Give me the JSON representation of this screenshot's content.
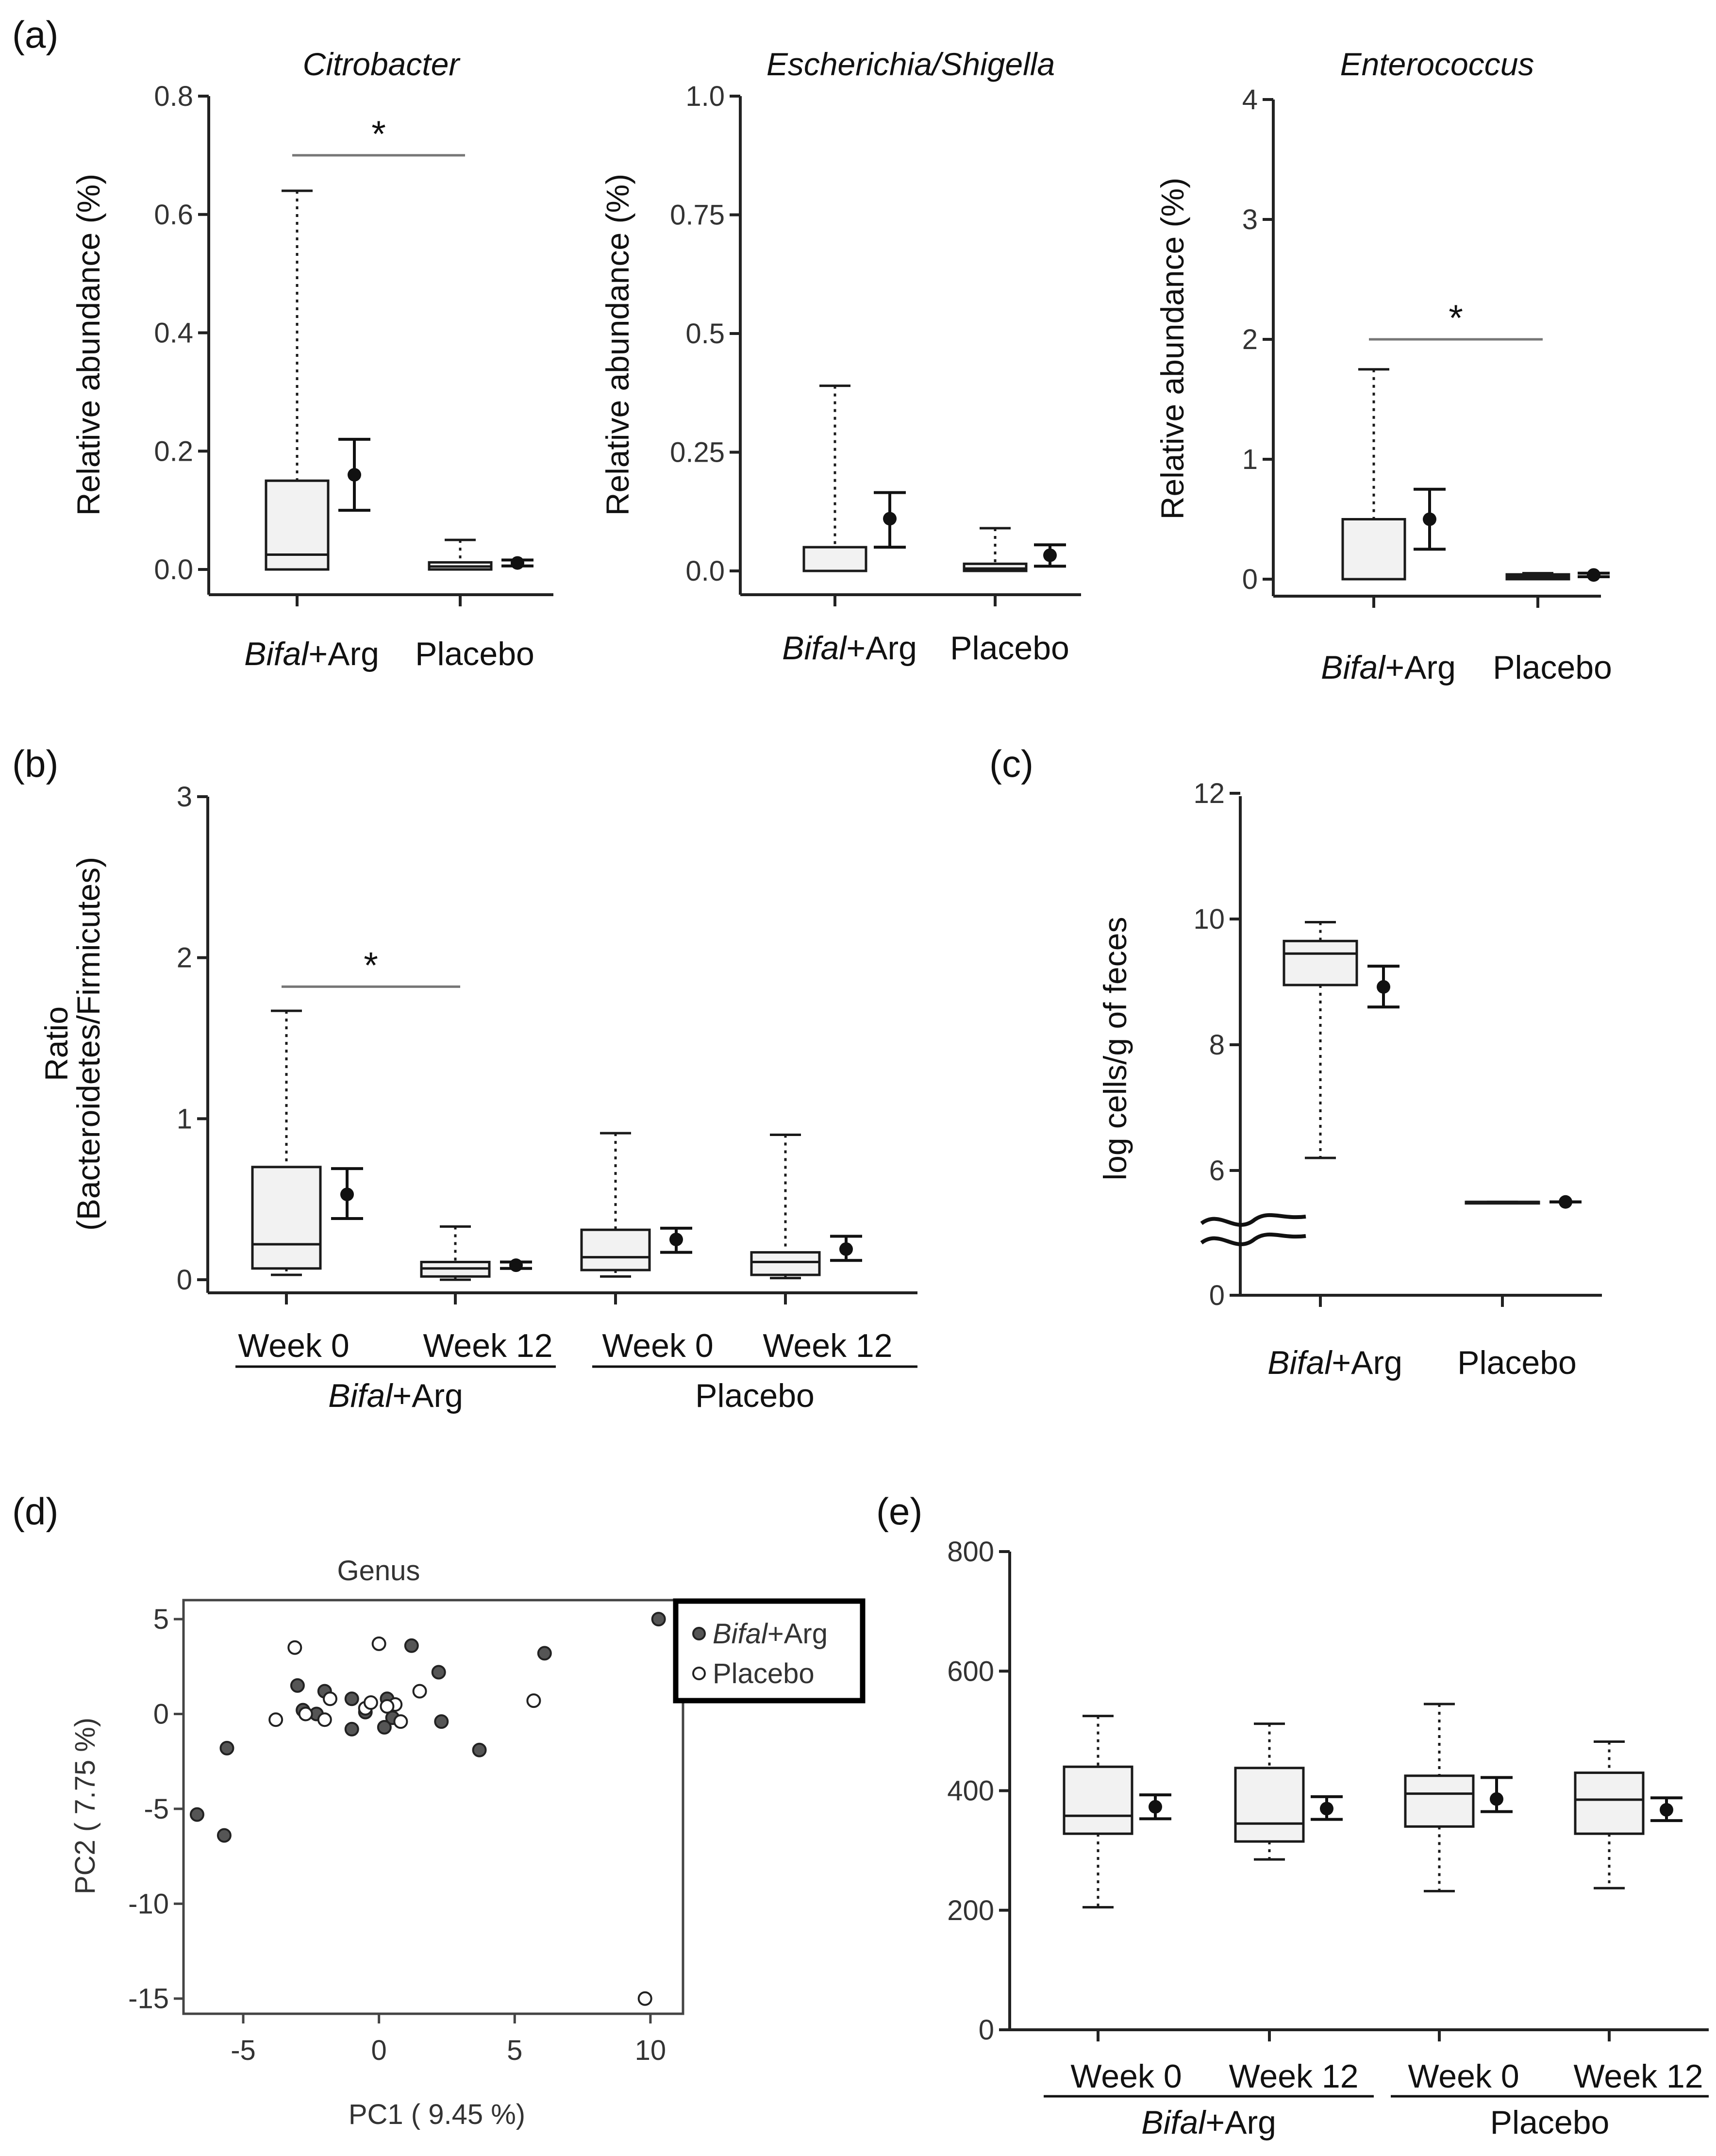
{
  "chart_data": [
    {
      "panel": "(a)",
      "type": "box",
      "title": "Citrobacter",
      "ylabel": "Relative abundance (%)",
      "ylim": [
        0,
        0.8
      ],
      "yticks": [
        "0.0",
        "0.2",
        "0.4",
        "0.6",
        "0.8"
      ],
      "categories": [
        {
          "italic": "Bifal",
          "rest": "+Arg"
        },
        {
          "italic": "",
          "rest": "Placebo"
        }
      ],
      "boxes": [
        {
          "min": 0.0,
          "q1": 0.0,
          "median": 0.025,
          "q3": 0.15,
          "max": 0.64,
          "mean": 0.16,
          "err_low": 0.1,
          "err_high": 0.22
        },
        {
          "min": 0.0,
          "q1": 0.0,
          "median": 0.005,
          "q3": 0.012,
          "max": 0.05,
          "mean": 0.011,
          "err_low": 0.006,
          "err_high": 0.016
        }
      ],
      "significance": [
        {
          "from": 0,
          "to": 1,
          "y": 0.7,
          "label": "*"
        }
      ]
    },
    {
      "panel": "",
      "type": "box",
      "title": "Escherichia/Shigella",
      "ylabel": "Relative abundance (%)",
      "ylim": [
        0,
        1.0
      ],
      "yticks": [
        "0.0",
        "0.25",
        "0.5",
        "0.75",
        "1.0"
      ],
      "categories": [
        {
          "italic": "Bifal",
          "rest": "+Arg"
        },
        {
          "italic": "",
          "rest": "Placebo"
        }
      ],
      "boxes": [
        {
          "min": 0.0,
          "q1": 0.0,
          "median": 0.0,
          "q3": 0.05,
          "max": 0.39,
          "mean": 0.11,
          "err_low": 0.05,
          "err_high": 0.165
        },
        {
          "min": 0.0,
          "q1": 0.0,
          "median": 0.005,
          "q3": 0.015,
          "max": 0.09,
          "mean": 0.033,
          "err_low": 0.01,
          "err_high": 0.055
        }
      ],
      "significance": []
    },
    {
      "panel": "",
      "type": "box",
      "title": "Enterococcus",
      "ylabel": "Relative abundance (%)",
      "ylim": [
        0,
        4
      ],
      "yticks": [
        "0",
        "1",
        "2",
        "3",
        "4"
      ],
      "categories": [
        {
          "italic": "Bifal",
          "rest": "+Arg"
        },
        {
          "italic": "",
          "rest": "Placebo"
        }
      ],
      "boxes": [
        {
          "min": 0.0,
          "q1": 0.0,
          "median": 0.0,
          "q3": 0.5,
          "max": 1.75,
          "mean": 0.5,
          "err_low": 0.25,
          "err_high": 0.75
        },
        {
          "min": 0.0,
          "q1": 0.0,
          "median": 0.02,
          "q3": 0.04,
          "max": 0.05,
          "mean": 0.035,
          "err_low": 0.02,
          "err_high": 0.05
        }
      ],
      "significance": [
        {
          "from": 0,
          "to": 1,
          "y": 2.0,
          "label": "*"
        }
      ]
    },
    {
      "panel": "(b)",
      "type": "box",
      "title": "",
      "ylabel": "Ratio",
      "ylabel2": "(Bacteroidetes/Firmicutes)",
      "ylim": [
        0,
        3
      ],
      "yticks": [
        "0",
        "1",
        "2",
        "3"
      ],
      "categories": [
        {
          "italic": "",
          "rest": "Week 0"
        },
        {
          "italic": "",
          "rest": "Week 12"
        },
        {
          "italic": "",
          "rest": "Week 0"
        },
        {
          "italic": "",
          "rest": "Week 12"
        }
      ],
      "groups": [
        {
          "italic": "Bifal",
          "rest": "+Arg"
        },
        {
          "italic": "",
          "rest": "Placebo"
        }
      ],
      "boxes": [
        {
          "min": 0.03,
          "q1": 0.07,
          "median": 0.22,
          "q3": 0.7,
          "max": 1.67,
          "mean": 0.53,
          "err_low": 0.38,
          "err_high": 0.69
        },
        {
          "min": 0.0,
          "q1": 0.02,
          "median": 0.07,
          "q3": 0.11,
          "max": 0.33,
          "mean": 0.09,
          "err_low": 0.07,
          "err_high": 0.11
        },
        {
          "min": 0.02,
          "q1": 0.06,
          "median": 0.14,
          "q3": 0.31,
          "max": 0.91,
          "mean": 0.25,
          "err_low": 0.17,
          "err_high": 0.32
        },
        {
          "min": 0.01,
          "q1": 0.03,
          "median": 0.11,
          "q3": 0.17,
          "max": 0.9,
          "mean": 0.19,
          "err_low": 0.12,
          "err_high": 0.27
        }
      ],
      "significance": [
        {
          "from": 0,
          "to": 1,
          "y": 1.82,
          "label": "*"
        }
      ]
    },
    {
      "panel": "(c)",
      "type": "box",
      "title": "",
      "ylabel": "log cells/g of feces",
      "ylim": [
        0,
        12
      ],
      "yticks": [
        "0",
        "6",
        "8",
        "10",
        "12"
      ],
      "axis_break": true,
      "categories": [
        {
          "italic": "Bifal",
          "rest": "+Arg"
        },
        {
          "italic": "",
          "rest": "Placebo"
        }
      ],
      "boxes": [
        {
          "min": 6.2,
          "q1": 8.95,
          "median": 9.45,
          "q3": 9.65,
          "max": 9.95,
          "mean": 8.92,
          "err_low": 8.6,
          "err_high": 9.25
        },
        {
          "min": 5.5,
          "q1": 5.5,
          "median": 5.5,
          "q3": 5.5,
          "max": 5.5,
          "mean": 5.5,
          "err_low": 5.5,
          "err_high": 5.5
        }
      ],
      "significance": []
    },
    {
      "panel": "(d)",
      "type": "scatter",
      "title": "Genus",
      "xlabel": "PC1 ( 9.45 %)",
      "ylabel": "PC2 ( 7.75 %)",
      "xlim": [
        -7.2,
        11.2
      ],
      "ylim": [
        -15.8,
        6.0
      ],
      "xticks": [
        "-5",
        "0",
        "5",
        "10"
      ],
      "yticks": [
        "5",
        "0",
        "-5",
        "-10",
        "-15"
      ],
      "legend": [
        {
          "italic": "Bifal",
          "rest": "+Arg",
          "style": "filled"
        },
        {
          "italic": "",
          "rest": "Placebo",
          "style": "open"
        }
      ],
      "series": [
        {
          "name": "Bifal+Arg",
          "points": [
            [
              10.3,
              5.0
            ],
            [
              6.1,
              3.2
            ],
            [
              1.2,
              3.6
            ],
            [
              2.2,
              2.2
            ],
            [
              -3.0,
              1.5
            ],
            [
              -2.0,
              1.2
            ],
            [
              -1.0,
              0.8
            ],
            [
              0.3,
              0.8
            ],
            [
              -2.8,
              0.2
            ],
            [
              -2.3,
              0.0
            ],
            [
              -0.5,
              0.1
            ],
            [
              0.5,
              -0.2
            ],
            [
              -1.0,
              -0.8
            ],
            [
              0.2,
              -0.7
            ],
            [
              2.3,
              -0.4
            ],
            [
              3.7,
              -1.9
            ],
            [
              -5.6,
              -1.8
            ],
            [
              -6.7,
              -5.3
            ],
            [
              -5.7,
              -6.4
            ]
          ]
        },
        {
          "name": "Placebo",
          "points": [
            [
              -3.1,
              3.5
            ],
            [
              0.0,
              3.7
            ],
            [
              5.7,
              0.7
            ],
            [
              -3.8,
              -0.3
            ],
            [
              -2.0,
              -0.3
            ],
            [
              -1.8,
              0.8
            ],
            [
              -0.5,
              0.3
            ],
            [
              0.6,
              0.5
            ],
            [
              1.5,
              1.2
            ],
            [
              0.3,
              0.4
            ],
            [
              -0.3,
              0.6
            ],
            [
              0.8,
              -0.4
            ],
            [
              -2.7,
              0.0
            ],
            [
              9.8,
              -15.0
            ]
          ]
        }
      ]
    },
    {
      "panel": "(e)",
      "type": "box",
      "title": "",
      "ylabel": "",
      "ylim": [
        0,
        800
      ],
      "yticks": [
        "0",
        "200",
        "400",
        "600",
        "800"
      ],
      "categories": [
        {
          "italic": "",
          "rest": "Week 0"
        },
        {
          "italic": "",
          "rest": "Week 12"
        },
        {
          "italic": "",
          "rest": "Week 0"
        },
        {
          "italic": "",
          "rest": "Week 12"
        }
      ],
      "groups": [
        {
          "italic": "Bifal",
          "rest": "+Arg"
        },
        {
          "italic": "",
          "rest": "Placebo"
        }
      ],
      "boxes": [
        {
          "min": 205,
          "q1": 328,
          "median": 358,
          "q3": 440,
          "max": 525,
          "mean": 373,
          "err_low": 353,
          "err_high": 393
        },
        {
          "min": 285,
          "q1": 315,
          "median": 345,
          "q3": 438,
          "max": 512,
          "mean": 370,
          "err_low": 352,
          "err_high": 390
        },
        {
          "min": 232,
          "q1": 340,
          "median": 395,
          "q3": 425,
          "max": 545,
          "mean": 386,
          "err_low": 365,
          "err_high": 422
        },
        {
          "min": 237,
          "q1": 328,
          "median": 385,
          "q3": 430,
          "max": 482,
          "mean": 368,
          "err_low": 350,
          "err_high": 388
        }
      ],
      "significance": []
    }
  ]
}
